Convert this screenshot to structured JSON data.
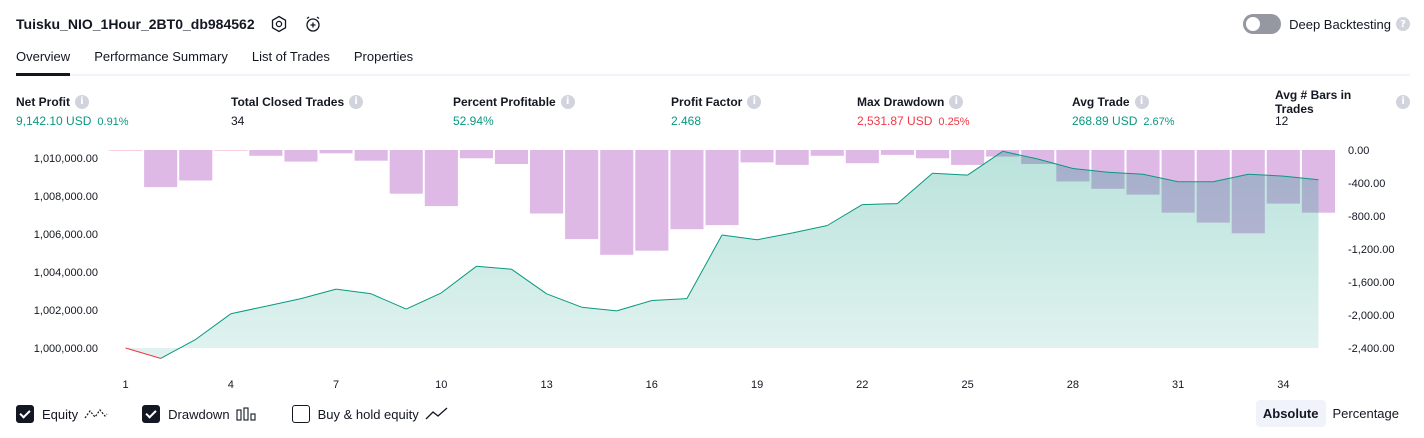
{
  "header": {
    "strategy_name": "Tuisku_NIO_1Hour_2BT0_db984562",
    "settings_icon": "settings-hexagon-icon",
    "alert_icon": "alarm-clock-plus-icon",
    "deep_backtesting_label": "Deep Backtesting",
    "deep_backtesting_enabled": false,
    "help_icon": "?"
  },
  "tabs": [
    {
      "label": "Overview",
      "active": true
    },
    {
      "label": "Performance Summary",
      "active": false
    },
    {
      "label": "List of Trades",
      "active": false
    },
    {
      "label": "Properties",
      "active": false
    }
  ],
  "info_glyph": "i",
  "stats": [
    {
      "label": "Net Profit",
      "value": "9,142.10 USD",
      "pct": "0.91%",
      "tone": "pos"
    },
    {
      "label": "Total Closed Trades",
      "value": "34",
      "pct": "",
      "tone": "neutral"
    },
    {
      "label": "Percent Profitable",
      "value": "52.94%",
      "pct": "",
      "tone": "pos"
    },
    {
      "label": "Profit Factor",
      "value": "2.468",
      "pct": "",
      "tone": "pos"
    },
    {
      "label": "Max Drawdown",
      "value": "2,531.87 USD",
      "pct": "0.25%",
      "tone": "neg"
    },
    {
      "label": "Avg Trade",
      "value": "268.89 USD",
      "pct": "2.67%",
      "tone": "pos"
    },
    {
      "label": "Avg # Bars in Trades",
      "value": "12",
      "pct": "",
      "tone": "neutral"
    }
  ],
  "chart_data": {
    "type": "line+bar",
    "x": [
      1,
      2,
      3,
      4,
      5,
      6,
      7,
      8,
      9,
      10,
      11,
      12,
      13,
      14,
      15,
      16,
      17,
      18,
      19,
      20,
      21,
      22,
      23,
      24,
      25,
      26,
      27,
      28,
      29,
      30,
      31,
      32,
      33,
      34,
      35
    ],
    "x_ticks": [
      1,
      4,
      7,
      10,
      13,
      16,
      19,
      22,
      25,
      28,
      31,
      34
    ],
    "equity": {
      "axis": "left",
      "values": [
        1000000,
        999450,
        1000450,
        1001800,
        1002200,
        1002600,
        1003100,
        1002850,
        1002050,
        1002900,
        1004300,
        1004150,
        1002850,
        1002150,
        1001950,
        1002500,
        1002600,
        1005950,
        1005700,
        1006050,
        1006450,
        1007550,
        1007600,
        1009200,
        1009100,
        1010350,
        1009950,
        1009450,
        1009250,
        1009150,
        1008750,
        1008750,
        1009150,
        1009050,
        1008850
      ],
      "color_above": "#089981",
      "color_below": "#f23645"
    },
    "drawdown": {
      "axis": "right",
      "values": [
        0,
        -450,
        -370,
        0,
        -70,
        -140,
        -40,
        -130,
        -530,
        -680,
        -100,
        -170,
        -770,
        -1080,
        -1270,
        -1220,
        -960,
        -910,
        -150,
        -180,
        -70,
        -160,
        -60,
        -100,
        -180,
        -80,
        -170,
        -380,
        -470,
        -540,
        -760,
        -880,
        -1010,
        -650,
        -760
      ],
      "color": "#ce93d8"
    },
    "left_axis_ticks": [
      "1,010,000.00",
      "1,008,000.00",
      "1,006,000.00",
      "1,004,000.00",
      "1,002,000.00",
      "1,000,000.00"
    ],
    "left_axis_values": [
      1010000,
      1008000,
      1006000,
      1004000,
      1002000,
      1000000
    ],
    "right_axis_ticks": [
      "0.00",
      "-400.00",
      "-800.00",
      "-1,200.00",
      "-1,600.00",
      "-2,000.00",
      "-2,400.00"
    ],
    "right_axis_values": [
      0,
      -400,
      -800,
      -1200,
      -1600,
      -2000,
      -2400
    ],
    "grid": false
  },
  "legend": [
    {
      "label": "Equity",
      "checked": true,
      "icon": "equity-line-icon"
    },
    {
      "label": "Drawdown",
      "checked": true,
      "icon": "drawdown-bars-icon"
    },
    {
      "label": "Buy & hold equity",
      "checked": false,
      "icon": "buy-hold-line-icon"
    }
  ],
  "modes": [
    {
      "label": "Absolute",
      "active": true
    },
    {
      "label": "Percentage",
      "active": false
    }
  ]
}
